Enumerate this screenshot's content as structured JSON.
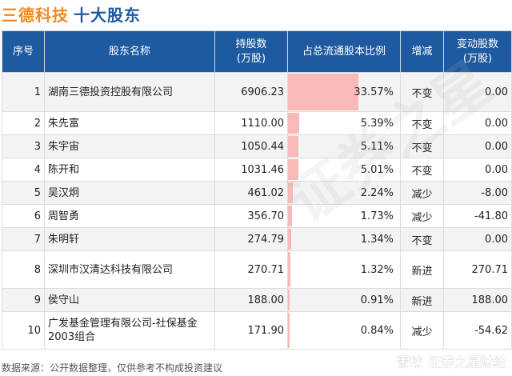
{
  "title": "三德科技",
  "subtitle": "十大股东",
  "headers": {
    "index": "序号",
    "name": "股东名称",
    "shares": "持股数\n(万股)",
    "ratio": "占总流通股本比例",
    "trend": "增减",
    "change": "变动股数\n(万股)"
  },
  "rows": [
    {
      "index": "1",
      "name": "湖南三德投资控股有限公司",
      "shares": "6906.23",
      "ratio": "33.57%",
      "ratio_value": 33.57,
      "trend": "不变",
      "trend_kind": "same",
      "change": "0.00",
      "change_kind": "neutral"
    },
    {
      "index": "2",
      "name": "朱先富",
      "shares": "1110.00",
      "ratio": "5.39%",
      "ratio_value": 5.39,
      "trend": "不变",
      "trend_kind": "same",
      "change": "0.00",
      "change_kind": "neutral"
    },
    {
      "index": "3",
      "name": "朱宇宙",
      "shares": "1050.44",
      "ratio": "5.11%",
      "ratio_value": 5.11,
      "trend": "不变",
      "trend_kind": "same",
      "change": "0.00",
      "change_kind": "neutral"
    },
    {
      "index": "4",
      "name": "陈开和",
      "shares": "1031.46",
      "ratio": "5.01%",
      "ratio_value": 5.01,
      "trend": "不变",
      "trend_kind": "same",
      "change": "0.00",
      "change_kind": "neutral"
    },
    {
      "index": "5",
      "name": "吴汉炯",
      "shares": "461.02",
      "ratio": "2.24%",
      "ratio_value": 2.24,
      "trend": "减少",
      "trend_kind": "down",
      "change": "-8.00",
      "change_kind": "neg"
    },
    {
      "index": "6",
      "name": "周智勇",
      "shares": "356.70",
      "ratio": "1.73%",
      "ratio_value": 1.73,
      "trend": "减少",
      "trend_kind": "down",
      "change": "-41.80",
      "change_kind": "neg"
    },
    {
      "index": "7",
      "name": "朱明轩",
      "shares": "274.79",
      "ratio": "1.34%",
      "ratio_value": 1.34,
      "trend": "不变",
      "trend_kind": "same",
      "change": "0.00",
      "change_kind": "neutral"
    },
    {
      "index": "8",
      "name": "深圳市汉清达科技有限公司",
      "shares": "270.71",
      "ratio": "1.32%",
      "ratio_value": 1.32,
      "trend": "新进",
      "trend_kind": "new",
      "change": "270.71",
      "change_kind": "pos"
    },
    {
      "index": "9",
      "name": "侯守山",
      "shares": "188.00",
      "ratio": "0.91%",
      "ratio_value": 0.91,
      "trend": "新进",
      "trend_kind": "new",
      "change": "188.00",
      "change_kind": "pos"
    },
    {
      "index": "10",
      "name": "广发基金管理有限公司-社保基金2003组合",
      "shares": "171.90",
      "ratio": "0.84%",
      "ratio_value": 0.84,
      "trend": "减少",
      "trend_kind": "down",
      "change": "-54.62",
      "change_kind": "neg"
    }
  ],
  "footer": "数据来源：公开数据整理，仅供参考不构成投资建议",
  "brand": {
    "platform": "雪球",
    "account": "证券之星财经"
  },
  "watermark": "证券之星",
  "colors": {
    "title_orange": "#f08a24",
    "header_blue": "#1e5aa0",
    "bar_red": "#f8b9b9",
    "up_red": "#e02020",
    "down_green": "#2ca02c"
  }
}
